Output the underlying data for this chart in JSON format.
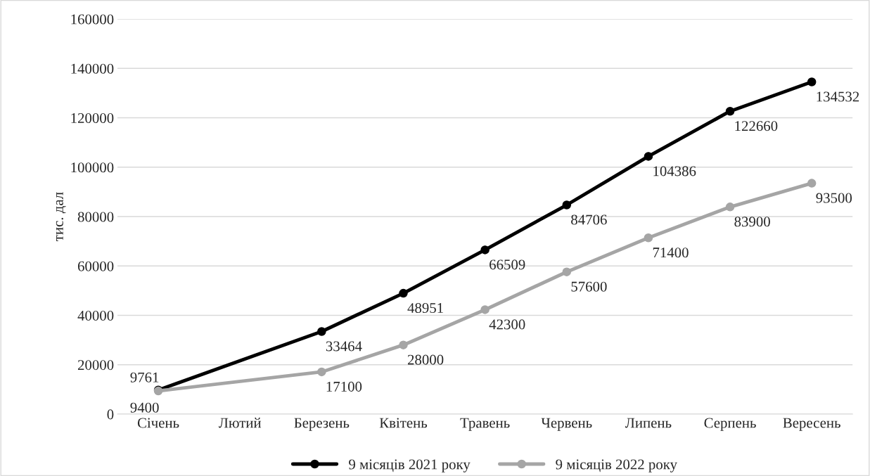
{
  "chart_data": {
    "type": "line",
    "ylabel": "тис. дал",
    "categories": [
      "Січень",
      "Лютий",
      "Березень",
      "Квітень",
      "Травень",
      "Червень",
      "Липень",
      "Серпень",
      "Вересень"
    ],
    "series": [
      {
        "name": "9 місяців 2021 року",
        "color": "#000000",
        "values": [
          9761,
          null,
          33464,
          48951,
          66509,
          84706,
          104386,
          122660,
          134532
        ]
      },
      {
        "name": "9 місяців 2022 року",
        "color": "#a5a5a5",
        "values": [
          9400,
          null,
          17100,
          28000,
          42300,
          57600,
          71400,
          83900,
          93500
        ]
      }
    ],
    "ylim": [
      0,
      160000
    ],
    "yticks": [
      0,
      20000,
      40000,
      60000,
      80000,
      100000,
      120000,
      140000,
      160000
    ],
    "grid": "y",
    "legend": "bottom",
    "marker": "circle",
    "line_style": "solid",
    "data_labels": true
  }
}
